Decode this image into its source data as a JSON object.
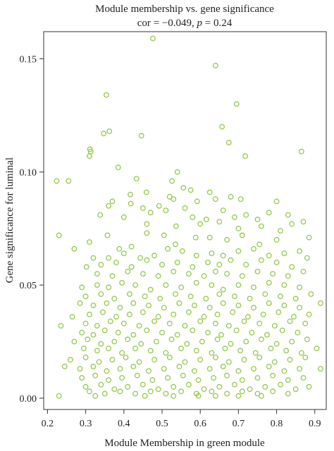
{
  "chart_data": {
    "type": "scatter",
    "title": "Module membership vs. gene significance",
    "subtitle_prefix": "cor = −0.049, ",
    "subtitle_p_symbol": "p",
    "subtitle_suffix": " = 0.24",
    "xlabel": "Module Membership in green module",
    "ylabel": "Gene significance for luminal",
    "xlim": [
      0.19,
      0.93
    ],
    "ylim": [
      -0.005,
      0.162
    ],
    "xticks": [
      0.2,
      0.3,
      0.4,
      0.5,
      0.6,
      0.7,
      0.8,
      0.9
    ],
    "xtick_labels": [
      "0.2",
      "0.3",
      "0.4",
      "0.5",
      "0.6",
      "0.7",
      "0.8",
      "0.9"
    ],
    "yticks": [
      0.0,
      0.05,
      0.1,
      0.15
    ],
    "ytick_labels": [
      "0.00",
      "0.05",
      "0.10",
      "0.15"
    ],
    "grid": false,
    "legend": "none",
    "point_color": "#8dc63f",
    "points": [
      [
        0.476,
        0.159
      ],
      [
        0.64,
        0.147
      ],
      [
        0.354,
        0.134
      ],
      [
        0.695,
        0.13
      ],
      [
        0.657,
        0.12
      ],
      [
        0.347,
        0.117
      ],
      [
        0.362,
        0.118
      ],
      [
        0.446,
        0.116
      ],
      [
        0.675,
        0.113
      ],
      [
        0.865,
        0.109
      ],
      [
        0.311,
        0.11
      ],
      [
        0.313,
        0.109
      ],
      [
        0.31,
        0.107
      ],
      [
        0.718,
        0.107
      ],
      [
        0.385,
        0.102
      ],
      [
        0.54,
        0.1
      ],
      [
        0.224,
        0.096
      ],
      [
        0.255,
        0.096
      ],
      [
        0.433,
        0.097
      ],
      [
        0.526,
        0.096
      ],
      [
        0.459,
        0.091
      ],
      [
        0.575,
        0.092
      ],
      [
        0.417,
        0.09
      ],
      [
        0.556,
        0.093
      ],
      [
        0.625,
        0.091
      ],
      [
        0.68,
        0.089
      ],
      [
        0.37,
        0.087
      ],
      [
        0.418,
        0.086
      ],
      [
        0.45,
        0.084
      ],
      [
        0.492,
        0.085
      ],
      [
        0.53,
        0.088
      ],
      [
        0.592,
        0.087
      ],
      [
        0.64,
        0.088
      ],
      [
        0.706,
        0.088
      ],
      [
        0.8,
        0.087
      ],
      [
        0.36,
        0.085
      ],
      [
        0.47,
        0.082
      ],
      [
        0.51,
        0.083
      ],
      [
        0.56,
        0.084
      ],
      [
        0.66,
        0.083
      ],
      [
        0.72,
        0.081
      ],
      [
        0.78,
        0.082
      ],
      [
        0.83,
        0.081
      ],
      [
        0.52,
        0.089
      ],
      [
        0.338,
        0.081
      ],
      [
        0.4,
        0.08
      ],
      [
        0.58,
        0.08
      ],
      [
        0.616,
        0.079
      ],
      [
        0.65,
        0.078
      ],
      [
        0.69,
        0.08
      ],
      [
        0.75,
        0.079
      ],
      [
        0.87,
        0.078
      ],
      [
        0.46,
        0.077
      ],
      [
        0.537,
        0.076
      ],
      [
        0.6,
        0.077
      ],
      [
        0.7,
        0.075
      ],
      [
        0.76,
        0.076
      ],
      [
        0.81,
        0.074
      ],
      [
        0.84,
        0.077
      ],
      [
        0.23,
        0.072
      ],
      [
        0.31,
        0.069
      ],
      [
        0.27,
        0.066
      ],
      [
        0.357,
        0.072
      ],
      [
        0.388,
        0.066
      ],
      [
        0.42,
        0.067
      ],
      [
        0.46,
        0.073
      ],
      [
        0.505,
        0.072
      ],
      [
        0.535,
        0.068
      ],
      [
        0.588,
        0.071
      ],
      [
        0.625,
        0.071
      ],
      [
        0.67,
        0.07
      ],
      [
        0.71,
        0.072
      ],
      [
        0.755,
        0.068
      ],
      [
        0.8,
        0.07
      ],
      [
        0.885,
        0.071
      ],
      [
        0.32,
        0.062
      ],
      [
        0.36,
        0.062
      ],
      [
        0.4,
        0.064
      ],
      [
        0.443,
        0.062
      ],
      [
        0.48,
        0.063
      ],
      [
        0.515,
        0.066
      ],
      [
        0.553,
        0.065
      ],
      [
        0.59,
        0.063
      ],
      [
        0.63,
        0.064
      ],
      [
        0.66,
        0.063
      ],
      [
        0.7,
        0.065
      ],
      [
        0.74,
        0.066
      ],
      [
        0.78,
        0.063
      ],
      [
        0.82,
        0.064
      ],
      [
        0.86,
        0.065
      ],
      [
        0.302,
        0.058
      ],
      [
        0.34,
        0.059
      ],
      [
        0.38,
        0.06
      ],
      [
        0.42,
        0.058
      ],
      [
        0.46,
        0.061
      ],
      [
        0.5,
        0.059
      ],
      [
        0.54,
        0.06
      ],
      [
        0.58,
        0.058
      ],
      [
        0.62,
        0.06
      ],
      [
        0.65,
        0.059
      ],
      [
        0.68,
        0.061
      ],
      [
        0.72,
        0.059
      ],
      [
        0.76,
        0.061
      ],
      [
        0.8,
        0.06
      ],
      [
        0.84,
        0.058
      ],
      [
        0.88,
        0.062
      ],
      [
        0.33,
        0.055
      ],
      [
        0.37,
        0.054
      ],
      [
        0.41,
        0.056
      ],
      [
        0.45,
        0.055
      ],
      [
        0.49,
        0.054
      ],
      [
        0.53,
        0.056
      ],
      [
        0.57,
        0.055
      ],
      [
        0.61,
        0.054
      ],
      [
        0.64,
        0.056
      ],
      [
        0.67,
        0.055
      ],
      [
        0.71,
        0.054
      ],
      [
        0.75,
        0.056
      ],
      [
        0.79,
        0.055
      ],
      [
        0.83,
        0.054
      ],
      [
        0.87,
        0.056
      ],
      [
        0.29,
        0.049
      ],
      [
        0.33,
        0.05
      ],
      [
        0.36,
        0.049
      ],
      [
        0.395,
        0.051
      ],
      [
        0.43,
        0.05
      ],
      [
        0.47,
        0.048
      ],
      [
        0.51,
        0.05
      ],
      [
        0.55,
        0.049
      ],
      [
        0.59,
        0.051
      ],
      [
        0.63,
        0.05
      ],
      [
        0.66,
        0.048
      ],
      [
        0.7,
        0.05
      ],
      [
        0.74,
        0.049
      ],
      [
        0.78,
        0.051
      ],
      [
        0.82,
        0.05
      ],
      [
        0.86,
        0.049
      ],
      [
        0.3,
        0.045
      ],
      [
        0.34,
        0.046
      ],
      [
        0.375,
        0.044
      ],
      [
        0.415,
        0.046
      ],
      [
        0.455,
        0.045
      ],
      [
        0.495,
        0.044
      ],
      [
        0.535,
        0.046
      ],
      [
        0.575,
        0.045
      ],
      [
        0.615,
        0.044
      ],
      [
        0.65,
        0.046
      ],
      [
        0.69,
        0.045
      ],
      [
        0.73,
        0.044
      ],
      [
        0.77,
        0.046
      ],
      [
        0.81,
        0.045
      ],
      [
        0.85,
        0.044
      ],
      [
        0.89,
        0.046
      ],
      [
        0.285,
        0.042
      ],
      [
        0.32,
        0.041
      ],
      [
        0.355,
        0.042
      ],
      [
        0.39,
        0.04
      ],
      [
        0.425,
        0.042
      ],
      [
        0.465,
        0.041
      ],
      [
        0.505,
        0.04
      ],
      [
        0.545,
        0.042
      ],
      [
        0.585,
        0.041
      ],
      [
        0.625,
        0.04
      ],
      [
        0.66,
        0.042
      ],
      [
        0.7,
        0.041
      ],
      [
        0.74,
        0.04
      ],
      [
        0.78,
        0.042
      ],
      [
        0.82,
        0.041
      ],
      [
        0.86,
        0.04
      ],
      [
        0.915,
        0.042
      ],
      [
        0.265,
        0.036
      ],
      [
        0.31,
        0.037
      ],
      [
        0.345,
        0.038
      ],
      [
        0.38,
        0.036
      ],
      [
        0.415,
        0.037
      ],
      [
        0.45,
        0.038
      ],
      [
        0.49,
        0.036
      ],
      [
        0.53,
        0.037
      ],
      [
        0.57,
        0.038
      ],
      [
        0.61,
        0.036
      ],
      [
        0.645,
        0.037
      ],
      [
        0.685,
        0.038
      ],
      [
        0.725,
        0.036
      ],
      [
        0.765,
        0.037
      ],
      [
        0.805,
        0.038
      ],
      [
        0.845,
        0.036
      ],
      [
        0.885,
        0.037
      ],
      [
        0.235,
        0.032
      ],
      [
        0.3,
        0.033
      ],
      [
        0.33,
        0.032
      ],
      [
        0.365,
        0.034
      ],
      [
        0.4,
        0.033
      ],
      [
        0.44,
        0.032
      ],
      [
        0.48,
        0.034
      ],
      [
        0.52,
        0.033
      ],
      [
        0.56,
        0.032
      ],
      [
        0.6,
        0.034
      ],
      [
        0.64,
        0.033
      ],
      [
        0.675,
        0.032
      ],
      [
        0.715,
        0.034
      ],
      [
        0.755,
        0.033
      ],
      [
        0.795,
        0.032
      ],
      [
        0.835,
        0.034
      ],
      [
        0.875,
        0.033
      ],
      [
        0.29,
        0.029
      ],
      [
        0.32,
        0.028
      ],
      [
        0.35,
        0.03
      ],
      [
        0.385,
        0.029
      ],
      [
        0.425,
        0.028
      ],
      [
        0.46,
        0.03
      ],
      [
        0.5,
        0.029
      ],
      [
        0.54,
        0.028
      ],
      [
        0.58,
        0.03
      ],
      [
        0.62,
        0.029
      ],
      [
        0.655,
        0.028
      ],
      [
        0.695,
        0.03
      ],
      [
        0.735,
        0.029
      ],
      [
        0.775,
        0.028
      ],
      [
        0.815,
        0.03
      ],
      [
        0.855,
        0.029
      ],
      [
        0.27,
        0.025
      ],
      [
        0.305,
        0.026
      ],
      [
        0.34,
        0.024
      ],
      [
        0.375,
        0.025
      ],
      [
        0.41,
        0.026
      ],
      [
        0.445,
        0.024
      ],
      [
        0.485,
        0.025
      ],
      [
        0.525,
        0.026
      ],
      [
        0.565,
        0.024
      ],
      [
        0.605,
        0.025
      ],
      [
        0.645,
        0.026
      ],
      [
        0.68,
        0.024
      ],
      [
        0.72,
        0.025
      ],
      [
        0.76,
        0.026
      ],
      [
        0.8,
        0.024
      ],
      [
        0.84,
        0.025
      ],
      [
        0.88,
        0.026
      ],
      [
        0.295,
        0.022
      ],
      [
        0.33,
        0.021
      ],
      [
        0.36,
        0.022
      ],
      [
        0.395,
        0.02
      ],
      [
        0.43,
        0.022
      ],
      [
        0.47,
        0.021
      ],
      [
        0.51,
        0.02
      ],
      [
        0.55,
        0.022
      ],
      [
        0.59,
        0.021
      ],
      [
        0.63,
        0.02
      ],
      [
        0.665,
        0.022
      ],
      [
        0.705,
        0.021
      ],
      [
        0.745,
        0.02
      ],
      [
        0.785,
        0.022
      ],
      [
        0.825,
        0.021
      ],
      [
        0.865,
        0.02
      ],
      [
        0.905,
        0.022
      ],
      [
        0.26,
        0.017
      ],
      [
        0.3,
        0.018
      ],
      [
        0.335,
        0.016
      ],
      [
        0.37,
        0.017
      ],
      [
        0.405,
        0.018
      ],
      [
        0.44,
        0.016
      ],
      [
        0.48,
        0.017
      ],
      [
        0.52,
        0.018
      ],
      [
        0.56,
        0.016
      ],
      [
        0.6,
        0.017
      ],
      [
        0.64,
        0.018
      ],
      [
        0.675,
        0.016
      ],
      [
        0.715,
        0.017
      ],
      [
        0.755,
        0.018
      ],
      [
        0.795,
        0.016
      ],
      [
        0.835,
        0.017
      ],
      [
        0.875,
        0.018
      ],
      [
        0.245,
        0.014
      ],
      [
        0.285,
        0.013
      ],
      [
        0.32,
        0.014
      ],
      [
        0.355,
        0.012
      ],
      [
        0.39,
        0.013
      ],
      [
        0.425,
        0.014
      ],
      [
        0.465,
        0.012
      ],
      [
        0.505,
        0.013
      ],
      [
        0.545,
        0.014
      ],
      [
        0.585,
        0.012
      ],
      [
        0.625,
        0.013
      ],
      [
        0.66,
        0.014
      ],
      [
        0.7,
        0.012
      ],
      [
        0.74,
        0.013
      ],
      [
        0.78,
        0.014
      ],
      [
        0.82,
        0.012
      ],
      [
        0.86,
        0.013
      ],
      [
        0.915,
        0.013
      ],
      [
        0.29,
        0.009
      ],
      [
        0.325,
        0.01
      ],
      [
        0.36,
        0.008
      ],
      [
        0.395,
        0.009
      ],
      [
        0.435,
        0.01
      ],
      [
        0.475,
        0.008
      ],
      [
        0.515,
        0.009
      ],
      [
        0.555,
        0.01
      ],
      [
        0.595,
        0.008
      ],
      [
        0.635,
        0.009
      ],
      [
        0.67,
        0.01
      ],
      [
        0.71,
        0.008
      ],
      [
        0.75,
        0.009
      ],
      [
        0.79,
        0.01
      ],
      [
        0.83,
        0.008
      ],
      [
        0.87,
        0.009
      ],
      [
        0.3,
        0.005
      ],
      [
        0.34,
        0.006
      ],
      [
        0.375,
        0.004
      ],
      [
        0.41,
        0.005
      ],
      [
        0.45,
        0.006
      ],
      [
        0.49,
        0.004
      ],
      [
        0.53,
        0.005
      ],
      [
        0.57,
        0.006
      ],
      [
        0.61,
        0.004
      ],
      [
        0.65,
        0.005
      ],
      [
        0.69,
        0.006
      ],
      [
        0.73,
        0.004
      ],
      [
        0.77,
        0.005
      ],
      [
        0.81,
        0.006
      ],
      [
        0.85,
        0.004
      ],
      [
        0.885,
        0.005
      ],
      [
        0.31,
        0.003
      ],
      [
        0.35,
        0.002
      ],
      [
        0.39,
        0.003
      ],
      [
        0.43,
        0.002
      ],
      [
        0.47,
        0.003
      ],
      [
        0.51,
        0.002
      ],
      [
        0.55,
        0.003
      ],
      [
        0.59,
        0.002
      ],
      [
        0.63,
        0.003
      ],
      [
        0.67,
        0.002
      ],
      [
        0.71,
        0.003
      ],
      [
        0.75,
        0.002
      ],
      [
        0.79,
        0.003
      ],
      [
        0.83,
        0.002
      ],
      [
        0.455,
        0.001
      ],
      [
        0.53,
        0.001
      ],
      [
        0.64,
        0.001
      ],
      [
        0.7,
        0.001
      ],
      [
        0.76,
        0.001
      ],
      [
        0.23,
        0.001
      ],
      [
        0.325,
        0.001
      ],
      [
        0.595,
        0.001
      ]
    ]
  }
}
